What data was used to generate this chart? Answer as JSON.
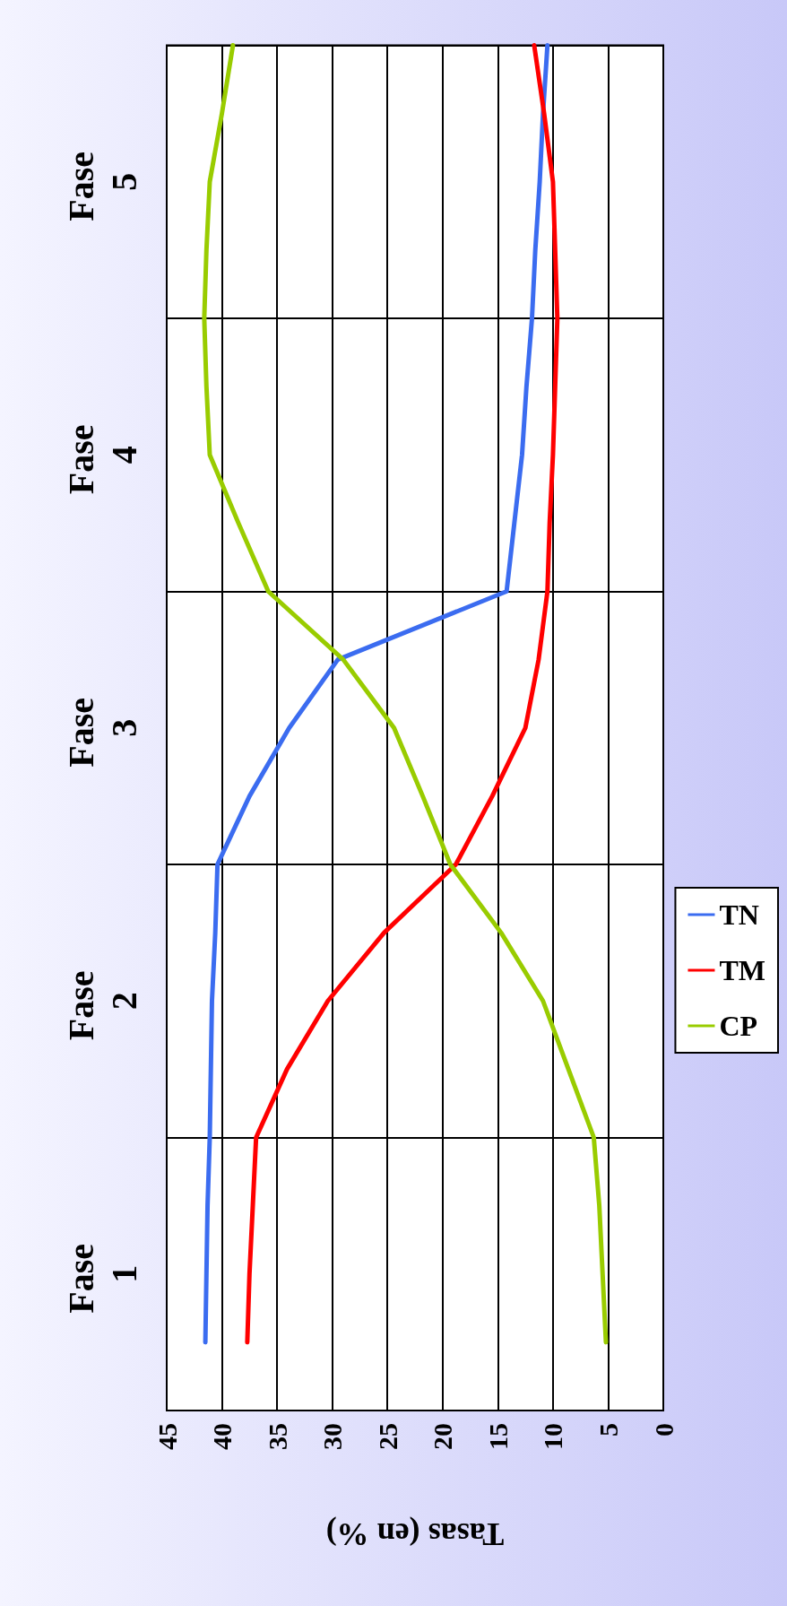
{
  "chart_data": {
    "type": "line",
    "orientation": "horizontal",
    "xlabel": "Tasas (en %)",
    "xlim": [
      45,
      0
    ],
    "xticks": [
      45,
      40,
      35,
      30,
      25,
      20,
      15,
      10,
      5,
      0
    ],
    "categories": [
      null,
      null,
      "Fase 5",
      null,
      null,
      null,
      "Fase 4",
      null,
      null,
      null,
      "Fase 3",
      null,
      null,
      null,
      "Fase 2",
      null,
      null,
      null,
      "Fase 1",
      null,
      null
    ],
    "grid": true,
    "legend": "right",
    "marker": "none",
    "line_style": "solid",
    "series": [
      {
        "name": "TN",
        "color": "#3b6cf0",
        "values": [
          10.5,
          10.9,
          11.2,
          11.6,
          11.9,
          12.4,
          12.8,
          13.5,
          14.2,
          29.5,
          33.9,
          37.5,
          40.4,
          40.6,
          40.9,
          41,
          41.1,
          41.3,
          41.4,
          41.5,
          null
        ]
      },
      {
        "name": "TM",
        "color": "#ff0000",
        "values": [
          11.7,
          10.8,
          10,
          9.8,
          9.6,
          9.8,
          10,
          10.3,
          10.5,
          11.3,
          12.5,
          15.5,
          18.8,
          25.3,
          30.4,
          34.1,
          36.9,
          37.2,
          37.5,
          37.7,
          null
        ]
      },
      {
        "name": "CP",
        "color": "#99cc00",
        "values": [
          39,
          40,
          41.1,
          41.4,
          41.6,
          41.4,
          41.1,
          38.5,
          35.8,
          29,
          24.4,
          21.8,
          19.3,
          14.7,
          10.9,
          8.6,
          6.3,
          5.8,
          5.5,
          5.2,
          null
        ]
      }
    ]
  }
}
